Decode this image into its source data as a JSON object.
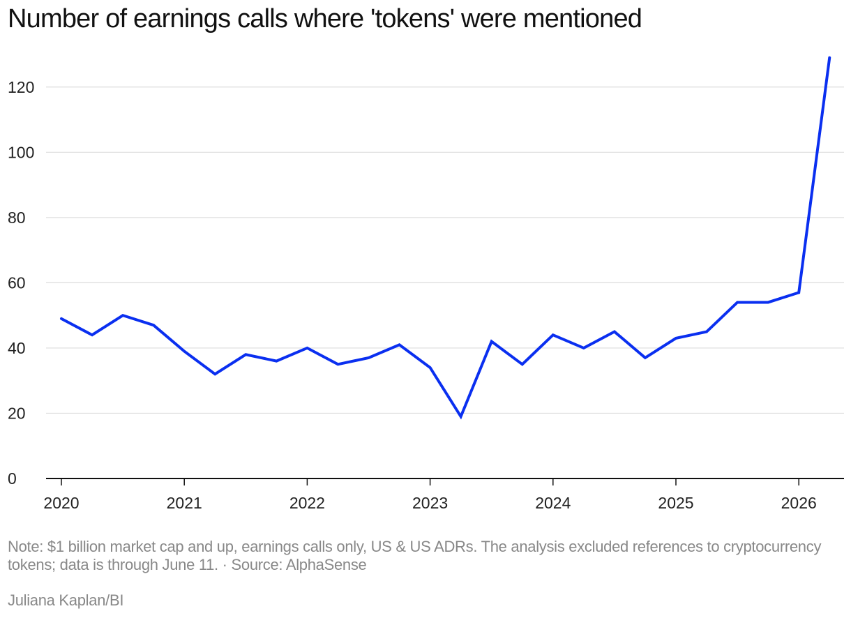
{
  "chart_data": {
    "type": "line",
    "title": "Number of earnings calls where 'tokens' were mentioned",
    "xlabel": "",
    "ylabel": "",
    "x_ticks": [
      "2020",
      "2021",
      "2022",
      "2023",
      "2024",
      "2025",
      "2026"
    ],
    "y_ticks": [
      "0",
      "20",
      "40",
      "60",
      "80",
      "100",
      "120"
    ],
    "ylim": [
      0,
      130
    ],
    "xlim": [
      "2020-Q1",
      "2026-Q2"
    ],
    "grid": true,
    "legend": "none",
    "categories": [
      "2020-Q1",
      "2020-Q2",
      "2020-Q3",
      "2020-Q4",
      "2021-Q1",
      "2021-Q2",
      "2021-Q3",
      "2021-Q4",
      "2022-Q1",
      "2022-Q2",
      "2022-Q3",
      "2022-Q4",
      "2023-Q1",
      "2023-Q2",
      "2023-Q3",
      "2023-Q4",
      "2024-Q1",
      "2024-Q2",
      "2024-Q3",
      "2024-Q4",
      "2025-Q1",
      "2025-Q2",
      "2025-Q3",
      "2025-Q4",
      "2026-Q1",
      "2026-Q2"
    ],
    "series": [
      {
        "values": [
          49,
          44,
          50,
          47,
          39,
          32,
          38,
          36,
          40,
          35,
          37,
          41,
          34,
          19,
          42,
          35,
          44,
          40,
          45,
          37,
          43,
          45,
          54,
          54,
          57,
          129
        ]
      }
    ],
    "line_color": "#0a2ff0",
    "grid_color": "#dddddd",
    "axis_color": "#111111"
  },
  "footer": {
    "note": "Note: $1 billion market cap and up, earnings calls only, US & US ADRs. The analysis excluded references to cryptocurrency tokens; data is through June 11. · Source: AlphaSense",
    "credit": "Juliana Kaplan/BI"
  }
}
